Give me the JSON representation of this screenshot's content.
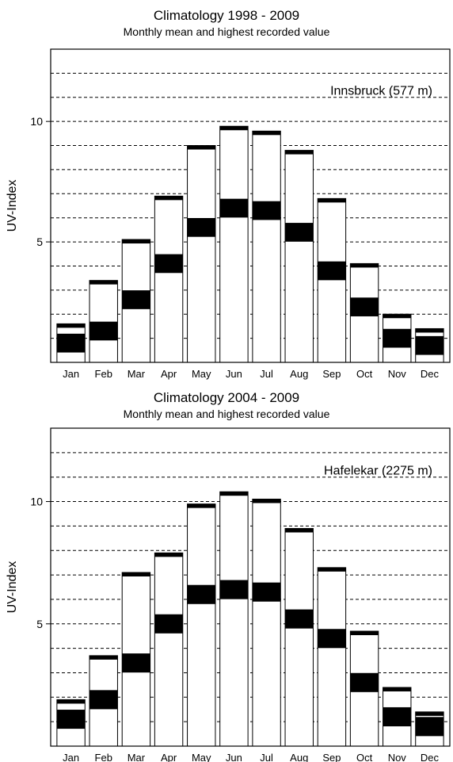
{
  "chart_data": [
    {
      "type": "bar",
      "title": "Climatology 1998 - 2009",
      "subtitle": "Monthly mean and highest recorded value",
      "annotation": "Innsbruck (577 m)",
      "ylabel": "UV-Index",
      "xlabel": "",
      "ylim": [
        0,
        13
      ],
      "yticks": [
        5,
        10
      ],
      "grid": "horizontal dashed",
      "categories": [
        "Jan",
        "Feb",
        "Mar",
        "Apr",
        "May",
        "Jun",
        "Jul",
        "Aug",
        "Sep",
        "Oct",
        "Nov",
        "Dec"
      ],
      "series": [
        {
          "name": "",
          "values": [
            0.8,
            1.3,
            2.6,
            4.1,
            5.6,
            6.4,
            6.3,
            5.4,
            3.8,
            2.3,
            1.0,
            0.7
          ]
        },
        {
          "name": "",
          "values": [
            1.6,
            3.4,
            5.1,
            6.9,
            9.0,
            9.8,
            9.6,
            8.8,
            6.8,
            4.1,
            2.0,
            1.4
          ]
        }
      ]
    },
    {
      "type": "bar",
      "title": "Climatology 2004 - 2009",
      "subtitle": "Monthly mean and highest recorded value",
      "annotation": "Hafelekar (2275 m)",
      "ylabel": "UV-Index",
      "xlabel": "",
      "ylim": [
        0,
        13
      ],
      "yticks": [
        5,
        10
      ],
      "grid": "horizontal dashed",
      "categories": [
        "Jan",
        "Feb",
        "Mar",
        "Apr",
        "May",
        "Jun",
        "Jul",
        "Aug",
        "Sep",
        "Oct",
        "Nov",
        "Dec"
      ],
      "series": [
        {
          "name": "",
          "values": [
            1.1,
            1.9,
            3.4,
            5.0,
            6.2,
            6.4,
            6.3,
            5.2,
            4.4,
            2.6,
            1.2,
            0.8
          ]
        },
        {
          "name": "",
          "values": [
            1.9,
            3.7,
            7.1,
            7.9,
            9.9,
            10.4,
            10.1,
            8.9,
            7.3,
            4.7,
            2.4,
            1.4
          ]
        }
      ]
    }
  ]
}
